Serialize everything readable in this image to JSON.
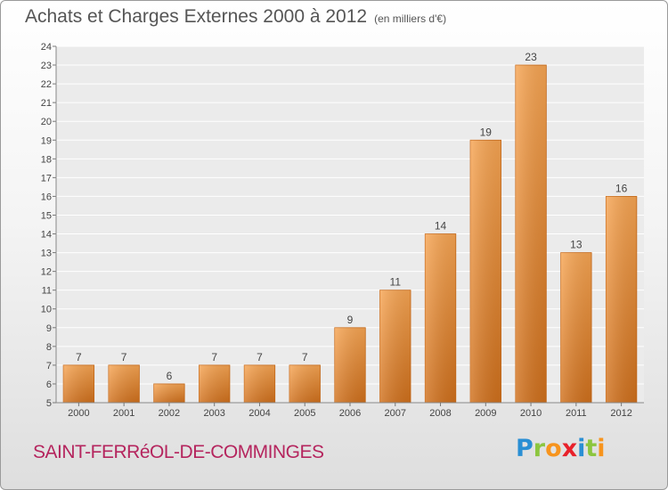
{
  "header": {
    "title": "Achats et Charges Externes 2000 à 2012",
    "subtitle": "(en milliers d'€)"
  },
  "footer": {
    "commune": "SAINT-FERRéOL-DE-COMMINGES"
  },
  "logo": {
    "letters": [
      "P",
      "r",
      "o",
      "x",
      "i",
      "t",
      "i"
    ],
    "colors": [
      "#2a8fd4",
      "#8cc63f",
      "#f7941d",
      "#e8212a",
      "#2a8fd4",
      "#8cc63f",
      "#f7941d"
    ]
  },
  "chart_data": {
    "type": "bar",
    "categories": [
      "2000",
      "2001",
      "2002",
      "2003",
      "2004",
      "2005",
      "2006",
      "2007",
      "2008",
      "2009",
      "2010",
      "2011",
      "2012"
    ],
    "values": [
      7,
      7,
      6,
      7,
      7,
      7,
      9,
      11,
      14,
      19,
      23,
      13,
      16
    ],
    "ylim": [
      5,
      24
    ],
    "yticks": [
      5,
      6,
      7,
      8,
      9,
      10,
      11,
      12,
      13,
      14,
      15,
      16,
      17,
      18,
      19,
      20,
      21,
      22,
      23,
      24
    ],
    "grid": true,
    "bar_color": "#f0923a"
  }
}
